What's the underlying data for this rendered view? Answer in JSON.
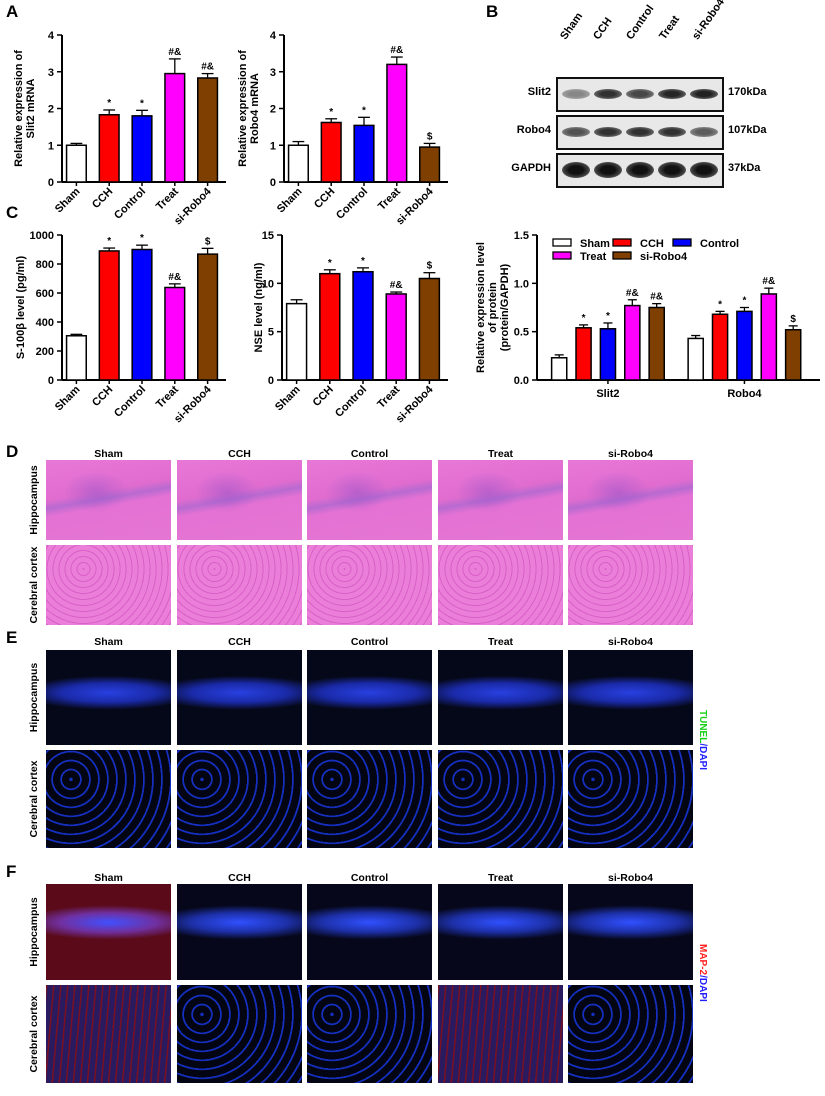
{
  "panel_labels": {
    "A": "A",
    "B": "B",
    "C": "C",
    "D": "D",
    "E": "E",
    "F": "F"
  },
  "groups": [
    "Sham",
    "CCH",
    "Control",
    "Treat",
    "si-Robo4"
  ],
  "colors": {
    "Sham": "#ffffff",
    "CCH": "#ff0000",
    "Control": "#0000ff",
    "Treat": "#ff00ff",
    "si-Robo4": "#7f3f00"
  },
  "chart_data": [
    {
      "id": "slit2_mrna",
      "type": "bar",
      "ylabel": [
        "Relative expression of",
        "Slit2 mRNA"
      ],
      "ylim": [
        0,
        4
      ],
      "yticks": [
        0,
        1,
        2,
        3,
        4
      ],
      "categories": [
        "Sham",
        "CCH",
        "Control",
        "Treat",
        "si-Robo4"
      ],
      "values": [
        1.0,
        1.83,
        1.8,
        2.95,
        2.83
      ],
      "errors": [
        0.05,
        0.13,
        0.15,
        0.4,
        0.12
      ],
      "annotations": [
        "",
        "*",
        "*",
        "#&",
        "#&"
      ]
    },
    {
      "id": "robo4_mrna",
      "type": "bar",
      "ylabel": [
        "Relative expression of",
        "Robo4 mRNA"
      ],
      "ylim": [
        0,
        4
      ],
      "yticks": [
        0,
        1,
        2,
        3,
        4
      ],
      "categories": [
        "Sham",
        "CCH",
        "Control",
        "Treat",
        "si-Robo4"
      ],
      "values": [
        1.0,
        1.62,
        1.54,
        3.2,
        0.95
      ],
      "errors": [
        0.1,
        0.1,
        0.22,
        0.2,
        0.1
      ],
      "annotations": [
        "",
        "*",
        "*",
        "#&",
        "$"
      ]
    },
    {
      "id": "s100b",
      "type": "bar",
      "ylabel": [
        "S-100β level (pg/ml)"
      ],
      "ylim": [
        0,
        1000
      ],
      "yticks": [
        0,
        200,
        400,
        600,
        800,
        1000
      ],
      "categories": [
        "Sham",
        "CCH",
        "Control",
        "Treat",
        "si-Robo4"
      ],
      "values": [
        305,
        890,
        900,
        638,
        868
      ],
      "errors": [
        10,
        20,
        30,
        25,
        40
      ],
      "annotations": [
        "",
        "*",
        "*",
        "#&",
        "$"
      ]
    },
    {
      "id": "nse",
      "type": "bar",
      "ylabel": [
        "NSE level (ng/ml)"
      ],
      "ylim": [
        0,
        15
      ],
      "yticks": [
        0,
        5,
        10,
        15
      ],
      "categories": [
        "Sham",
        "CCH",
        "Control",
        "Treat",
        "si-Robo4"
      ],
      "values": [
        7.9,
        11.0,
        11.2,
        8.9,
        10.5
      ],
      "errors": [
        0.4,
        0.4,
        0.4,
        0.2,
        0.6
      ],
      "annotations": [
        "",
        "*",
        "*",
        "#&",
        "$"
      ]
    },
    {
      "id": "protein",
      "type": "bar",
      "ylabel": [
        "Relative expression level",
        "of protein",
        "(protein/GAPDH)"
      ],
      "ylim": [
        0,
        1.5
      ],
      "yticks": [
        "0.0",
        "0.5",
        "1.0",
        "1.5"
      ],
      "categories": [
        "Slit2",
        "Robo4"
      ],
      "legend_position": "top",
      "series": [
        {
          "name": "Sham",
          "values": [
            0.23,
            0.43
          ],
          "errors": [
            0.03,
            0.03
          ],
          "annotations": [
            "",
            ""
          ]
        },
        {
          "name": "CCH",
          "values": [
            0.54,
            0.68
          ],
          "errors": [
            0.03,
            0.03
          ],
          "annotations": [
            "*",
            "*"
          ]
        },
        {
          "name": "Control",
          "values": [
            0.53,
            0.71
          ],
          "errors": [
            0.06,
            0.04
          ],
          "annotations": [
            "*",
            "*"
          ]
        },
        {
          "name": "Treat",
          "values": [
            0.77,
            0.89
          ],
          "errors": [
            0.06,
            0.06
          ],
          "annotations": [
            "#&",
            "#&"
          ]
        },
        {
          "name": "si-Robo4",
          "values": [
            0.75,
            0.52
          ],
          "errors": [
            0.04,
            0.04
          ],
          "annotations": [
            "#&",
            "$"
          ]
        }
      ]
    }
  ],
  "blot": {
    "lanes": [
      "Sham",
      "CCH",
      "Control",
      "Treat",
      "si-Robo4"
    ],
    "rows": [
      {
        "name": "Slit2",
        "kda": "170kDa",
        "intensity": [
          0.45,
          0.85,
          0.75,
          0.9,
          0.92
        ]
      },
      {
        "name": "Robo4",
        "kda": "107kDa",
        "intensity": [
          0.7,
          0.85,
          0.85,
          0.85,
          0.65
        ]
      },
      {
        "name": "GAPDH",
        "kda": "37kDa",
        "intensity": [
          1,
          1,
          1,
          1,
          1
        ]
      }
    ]
  },
  "histology": {
    "columns": [
      "Sham",
      "CCH",
      "Control",
      "Treat",
      "si-Robo4"
    ],
    "rows": [
      "Hippocampus",
      "Cerebral cortex"
    ],
    "tunel_label": {
      "a": "TUNEL",
      "b": "/DAPI"
    },
    "map2_label": {
      "a": "MAP-2",
      "b": "/DAPI"
    }
  }
}
